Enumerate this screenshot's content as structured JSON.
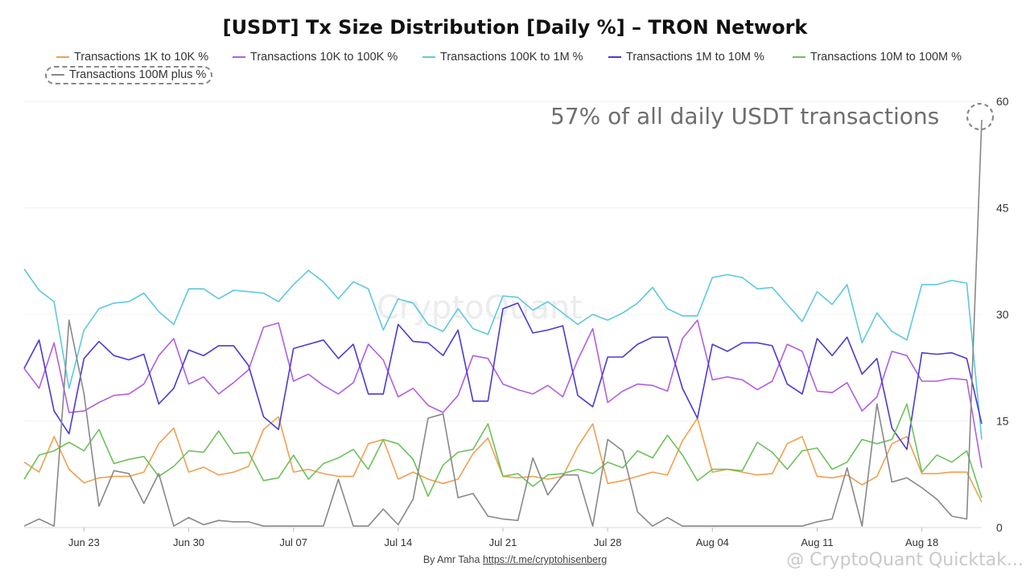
{
  "chart_data": {
    "type": "line",
    "title": "[USDT] Tx Size Distribution [Daily %] – TRON Network",
    "xlabel": "",
    "ylabel": "",
    "ylim": [
      0,
      60
    ],
    "yticks": [
      "0",
      "15",
      "30",
      "45",
      "60"
    ],
    "xticks": [
      "Jun 23",
      "Jun 30",
      "Jul 07",
      "Jul 14",
      "Jul 21",
      "Jul 28",
      "Aug 04",
      "Aug 11",
      "Aug 18"
    ],
    "x_start": "Jun 19",
    "x_end": "Aug 22",
    "grid": true,
    "legend_position": "top",
    "series": [
      {
        "name": "Transactions 1K to 10K %",
        "color": "#f0a050",
        "values": [
          9.2,
          7.8,
          12.8,
          8.2,
          6.3,
          7.0,
          7.2,
          7.2,
          7.8,
          11.8,
          14.0,
          7.8,
          8.5,
          7.4,
          7.8,
          8.6,
          13.8,
          15.6,
          7.8,
          8.2,
          7.6,
          7.2,
          7.2,
          11.8,
          12.4,
          6.8,
          7.8,
          6.8,
          6.2,
          6.8,
          10.4,
          12.6,
          7.2,
          7.0,
          7.2,
          6.8,
          7.2,
          11.4,
          14.6,
          6.2,
          6.6,
          7.2,
          7.8,
          7.4,
          12.2,
          15.4,
          7.8,
          8.2,
          7.8,
          7.4,
          7.6,
          11.8,
          12.8,
          7.2,
          7.0,
          7.4,
          6.0,
          7.2,
          11.8,
          12.8,
          7.6,
          7.6,
          7.8,
          7.8,
          3.6
        ]
      },
      {
        "name": "Transactions 10K to 100K %",
        "color": "#b35ede",
        "values": [
          22.4,
          19.6,
          26.0,
          16.2,
          16.4,
          17.6,
          18.6,
          18.8,
          20.2,
          24.2,
          26.6,
          20.2,
          21.2,
          18.8,
          20.4,
          22.2,
          28.2,
          28.8,
          20.6,
          21.6,
          20.0,
          18.8,
          20.4,
          25.8,
          23.6,
          18.4,
          19.6,
          17.2,
          16.2,
          18.6,
          24.2,
          23.8,
          20.2,
          19.4,
          18.8,
          20.0,
          18.4,
          23.6,
          28.0,
          17.6,
          19.2,
          20.2,
          20.0,
          19.2,
          26.6,
          29.2,
          20.8,
          21.2,
          20.8,
          19.4,
          20.6,
          25.8,
          24.8,
          19.2,
          19.0,
          20.4,
          16.4,
          18.4,
          24.8,
          24.2,
          20.6,
          20.6,
          21.0,
          20.8,
          8.4
        ]
      },
      {
        "name": "Transactions 100K to 1M %",
        "color": "#5dc8e0",
        "values": [
          36.4,
          33.4,
          31.8,
          19.6,
          27.8,
          30.8,
          31.6,
          31.8,
          33.0,
          30.4,
          28.6,
          33.6,
          33.6,
          32.2,
          33.4,
          33.2,
          33.0,
          31.8,
          34.2,
          36.2,
          34.6,
          32.2,
          34.6,
          33.6,
          27.8,
          32.2,
          31.6,
          28.6,
          27.6,
          30.8,
          28.0,
          27.2,
          32.6,
          32.4,
          30.6,
          31.8,
          30.2,
          28.6,
          30.0,
          29.2,
          30.2,
          31.6,
          33.8,
          30.8,
          29.8,
          29.8,
          35.2,
          35.6,
          35.2,
          33.6,
          33.8,
          31.4,
          29.0,
          33.2,
          31.4,
          34.2,
          26.0,
          30.2,
          27.6,
          26.4,
          34.2,
          34.2,
          34.8,
          34.4,
          12.4
        ]
      },
      {
        "name": "Transactions 1M to 10M %",
        "color": "#4a3ad2",
        "values": [
          22.4,
          26.4,
          16.4,
          13.2,
          23.8,
          26.2,
          24.2,
          23.6,
          24.4,
          17.4,
          19.6,
          25.0,
          24.2,
          25.6,
          25.6,
          22.8,
          15.6,
          13.8,
          25.2,
          25.8,
          26.4,
          23.8,
          25.8,
          18.8,
          18.8,
          28.6,
          26.2,
          26.0,
          24.2,
          27.8,
          17.8,
          17.8,
          30.8,
          31.6,
          27.4,
          27.8,
          28.4,
          18.6,
          17.0,
          24.0,
          24.0,
          25.8,
          26.8,
          26.8,
          19.6,
          15.4,
          25.8,
          24.8,
          26.0,
          26.0,
          25.6,
          20.2,
          18.8,
          26.6,
          24.2,
          26.8,
          21.6,
          23.8,
          14.0,
          11.0,
          24.6,
          24.4,
          24.6,
          23.8,
          14.6
        ]
      },
      {
        "name": "Transactions 10M to 100M %",
        "color": "#6cc25a",
        "values": [
          6.8,
          10.2,
          10.8,
          12.0,
          10.8,
          13.8,
          9.0,
          9.6,
          10.0,
          7.2,
          8.6,
          10.8,
          10.6,
          13.6,
          10.4,
          10.6,
          6.6,
          7.0,
          10.2,
          6.8,
          9.0,
          9.8,
          11.0,
          8.2,
          12.4,
          11.8,
          9.6,
          4.4,
          8.8,
          10.6,
          11.0,
          14.6,
          7.2,
          7.6,
          5.8,
          7.4,
          7.6,
          8.2,
          7.6,
          9.2,
          8.4,
          10.8,
          9.8,
          13.0,
          10.2,
          6.6,
          8.2,
          8.2,
          8.0,
          12.0,
          10.6,
          8.2,
          10.8,
          11.2,
          8.2,
          9.2,
          12.4,
          11.8,
          12.4,
          17.4,
          7.8,
          10.2,
          9.2,
          10.8,
          4.2
        ]
      },
      {
        "name": "Transactions 100M plus %",
        "color": "#888888",
        "values": [
          0.2,
          1.2,
          0.2,
          29.2,
          18.8,
          3.0,
          8.0,
          7.6,
          3.4,
          7.6,
          0.2,
          1.4,
          0.4,
          1.0,
          0.8,
          0.8,
          0.2,
          0.2,
          0.2,
          0.2,
          0.2,
          6.8,
          0.2,
          0.2,
          2.6,
          0.4,
          4.0,
          15.4,
          16.0,
          4.2,
          4.8,
          1.6,
          1.2,
          1.0,
          9.8,
          4.6,
          7.4,
          7.4,
          0.2,
          12.4,
          10.8,
          2.2,
          0.2,
          1.4,
          0.2,
          0.2,
          0.2,
          0.2,
          0.2,
          0.2,
          0.2,
          0.2,
          0.2,
          0.8,
          1.2,
          8.4,
          0.2,
          17.4,
          6.4,
          7.0,
          5.6,
          4.0,
          1.6,
          1.2,
          57.4
        ]
      }
    ],
    "annotation": "57% of all daily USDT transactions"
  },
  "byline": {
    "prefix": "By Amr Taha",
    "link": "https://t.me/cryptohisenberg"
  },
  "watermark": {
    "center": "CryptoQuant",
    "bottom": "@ CryptoQuant Quicktak..."
  },
  "highlight_color": "#888888"
}
